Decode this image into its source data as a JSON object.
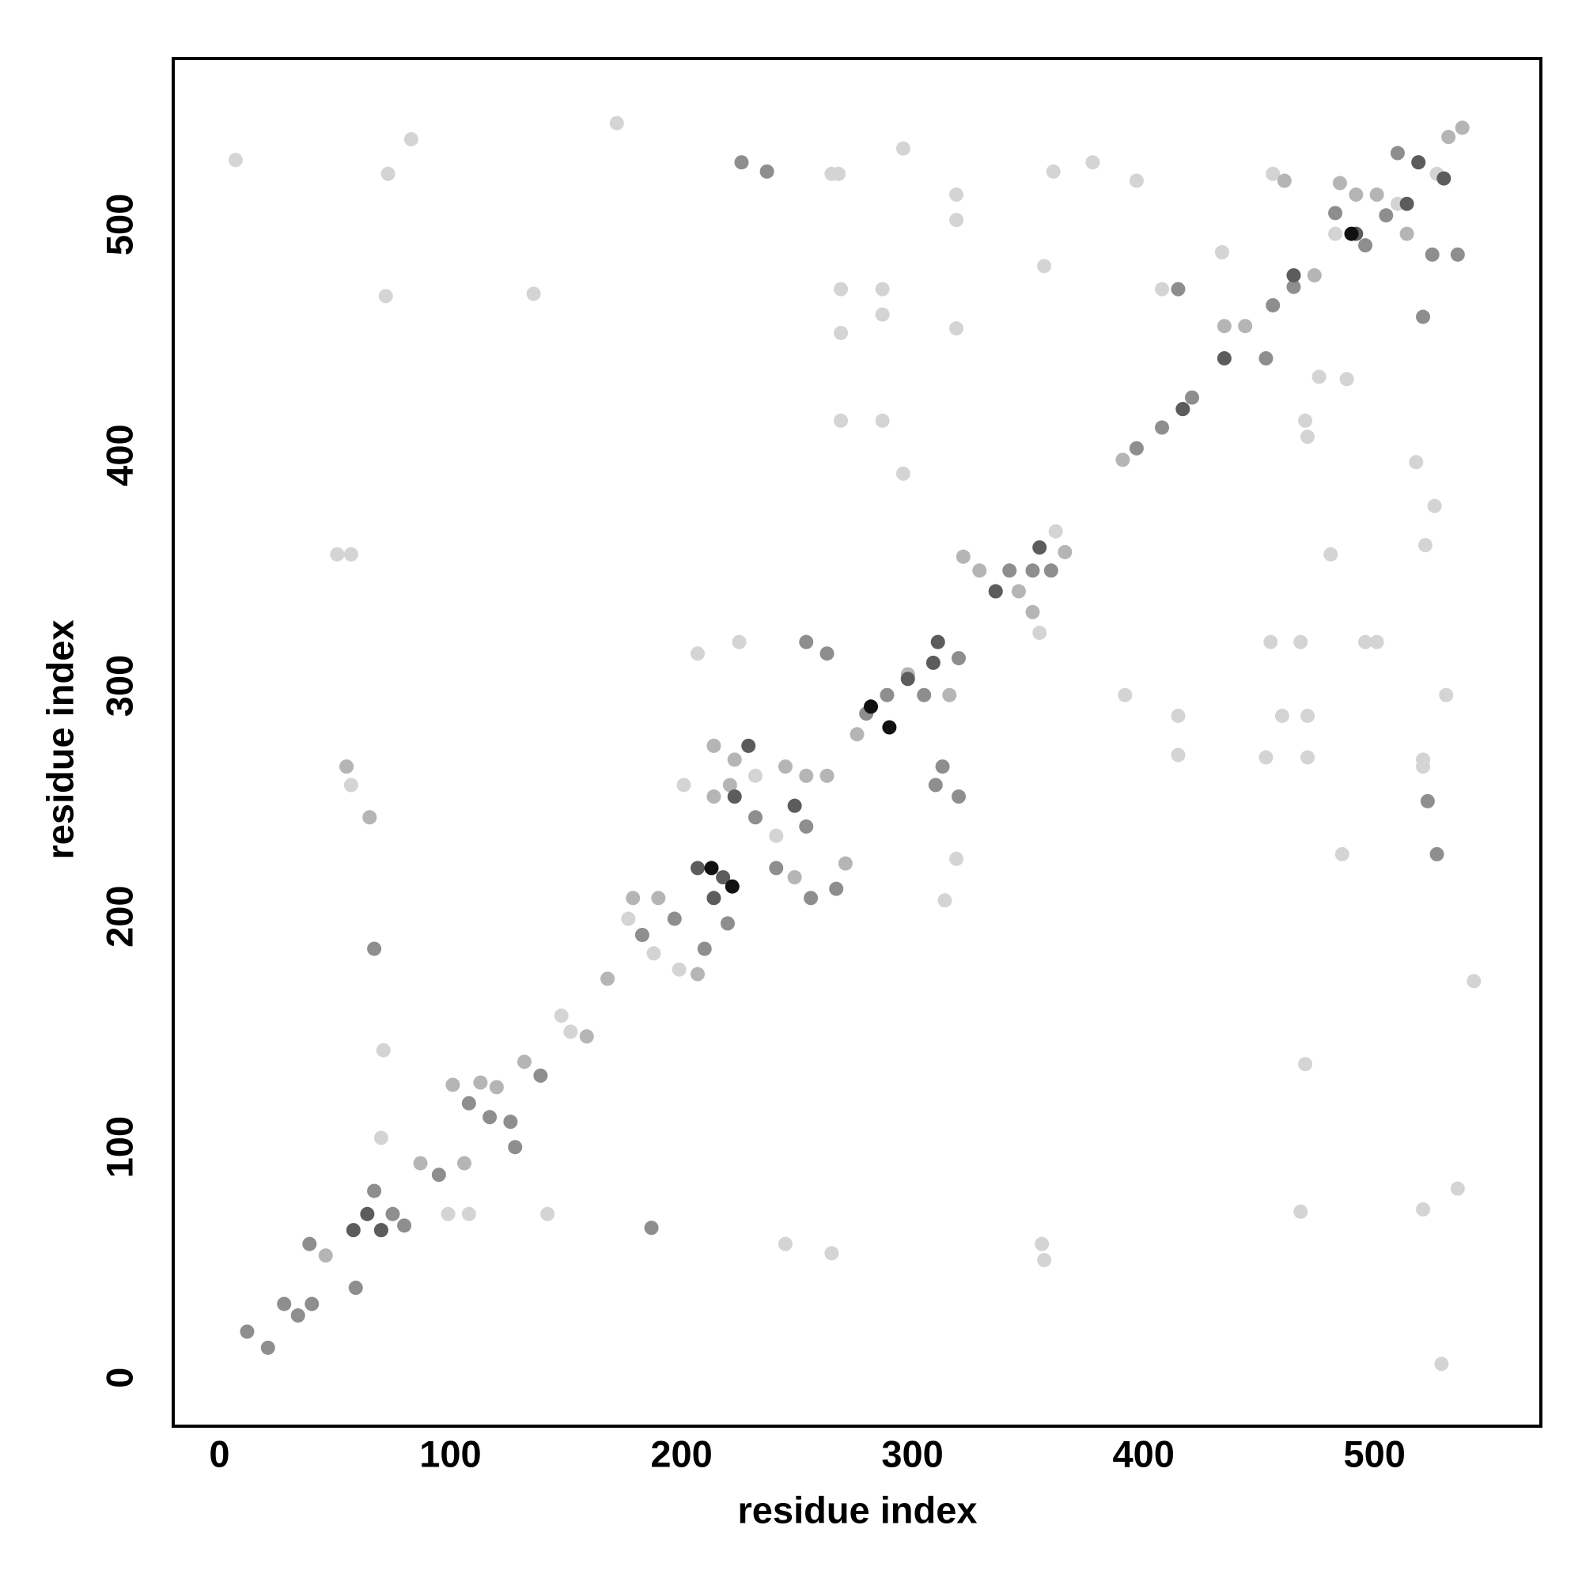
{
  "chart_data": {
    "type": "scatter",
    "xlabel": "residue index",
    "ylabel": "residue index",
    "xlim": [
      -20,
      572
    ],
    "ylim": [
      -21,
      572
    ],
    "xticks": [
      0,
      100,
      200,
      300,
      400,
      500
    ],
    "yticks": [
      0,
      100,
      200,
      300,
      400,
      500
    ],
    "grid": false,
    "series": [
      {
        "color": "#d4d4d4",
        "x": [
          7,
          83,
          73,
          72,
          172,
          136,
          296,
          269,
          287,
          287,
          269,
          269,
          287,
          296,
          319,
          319,
          319,
          265,
          268,
          361,
          378,
          397,
          434,
          357,
          408,
          470,
          471,
          476,
          488,
          518,
          526,
          522,
          468,
          496,
          501,
          455,
          460,
          471,
          415,
          453,
          471,
          415,
          531,
          392,
          481,
          521,
          521,
          486,
          470,
          468,
          521,
          536,
          543,
          529,
          319,
          314,
          207,
          225,
          51,
          57,
          55,
          57,
          65,
          71,
          70,
          99,
          108,
          142,
          245,
          265,
          356,
          357,
          148,
          152,
          177,
          188,
          199,
          223,
          241,
          201,
          232,
          311,
          355,
          362,
          456,
          483,
          510,
          527
        ],
        "values": [
          528,
          537,
          522,
          469,
          544,
          470,
          533,
          472,
          472,
          461,
          453,
          415,
          415,
          392,
          513,
          502,
          455,
          522,
          522,
          523,
          527,
          519,
          488,
          482,
          472,
          415,
          408,
          434,
          433,
          397,
          378,
          361,
          319,
          319,
          319,
          319,
          287,
          287,
          287,
          269,
          269,
          270,
          296,
          296,
          357,
          268,
          265,
          227,
          136,
          72,
          73,
          82,
          172,
          6,
          225,
          207,
          314,
          319,
          357,
          357,
          265,
          257,
          243,
          142,
          104,
          71,
          71,
          71,
          58,
          54,
          58,
          51,
          157,
          150,
          199,
          184,
          177,
          252,
          235,
          257,
          261,
          319,
          323,
          367,
          522,
          496,
          509,
          522
        ]
      },
      {
        "color": "#b5b5b5",
        "x": [
          46,
          70,
          87,
          106,
          101,
          113,
          120,
          132,
          159,
          168,
          179,
          190,
          207,
          214,
          221,
          214,
          223,
          245,
          254,
          263,
          249,
          271,
          276,
          298,
          316,
          329,
          336,
          346,
          352,
          366,
          391,
          417,
          435,
          444,
          461,
          474,
          485,
          492,
          501,
          514,
          519,
          532,
          538,
          322,
          55,
          65
        ],
        "values": [
          53,
          64,
          93,
          93,
          127,
          128,
          126,
          137,
          148,
          173,
          208,
          208,
          175,
          274,
          257,
          252,
          268,
          265,
          261,
          261,
          217,
          223,
          279,
          305,
          296,
          350,
          341,
          341,
          332,
          358,
          398,
          420,
          456,
          456,
          519,
          478,
          518,
          513,
          513,
          496,
          527,
          538,
          542,
          356,
          265,
          243
        ]
      },
      {
        "color": "#8e8e8e",
        "x": [
          12,
          21,
          28,
          34,
          40,
          39,
          59,
          75,
          80,
          67,
          95,
          108,
          117,
          126,
          128,
          139,
          183,
          197,
          210,
          220,
          232,
          241,
          256,
          267,
          254,
          289,
          305,
          320,
          342,
          352,
          360,
          397,
          408,
          421,
          453,
          456,
          465,
          483,
          496,
          505,
          521,
          510,
          536,
          525,
          226,
          237,
          415,
          187,
          67,
          527,
          523,
          310,
          320,
          313,
          254,
          263,
          280
        ],
        "values": [
          20,
          13,
          32,
          27,
          32,
          58,
          39,
          71,
          66,
          81,
          88,
          119,
          113,
          111,
          100,
          131,
          192,
          199,
          186,
          197,
          243,
          221,
          208,
          212,
          239,
          296,
          296,
          312,
          350,
          350,
          350,
          403,
          412,
          425,
          442,
          465,
          473,
          505,
          491,
          504,
          460,
          531,
          487,
          487,
          527,
          523,
          472,
          65,
          186,
          227,
          250,
          257,
          252,
          265,
          319,
          314,
          288
        ]
      },
      {
        "color": "#5c5c5c",
        "x": [
          58,
          64,
          70,
          207,
          218,
          214,
          223,
          249,
          311,
          336,
          355,
          417,
          435,
          465,
          492,
          519,
          514,
          530,
          298,
          309,
          229
        ],
        "values": [
          64,
          71,
          64,
          221,
          217,
          208,
          252,
          248,
          319,
          341,
          360,
          420,
          442,
          478,
          496,
          527,
          509,
          520,
          303,
          310,
          274
        ]
      },
      {
        "color": "#111111",
        "x": [
          213,
          222,
          282,
          290,
          490
        ],
        "values": [
          221,
          213,
          291,
          282,
          496
        ]
      }
    ]
  }
}
